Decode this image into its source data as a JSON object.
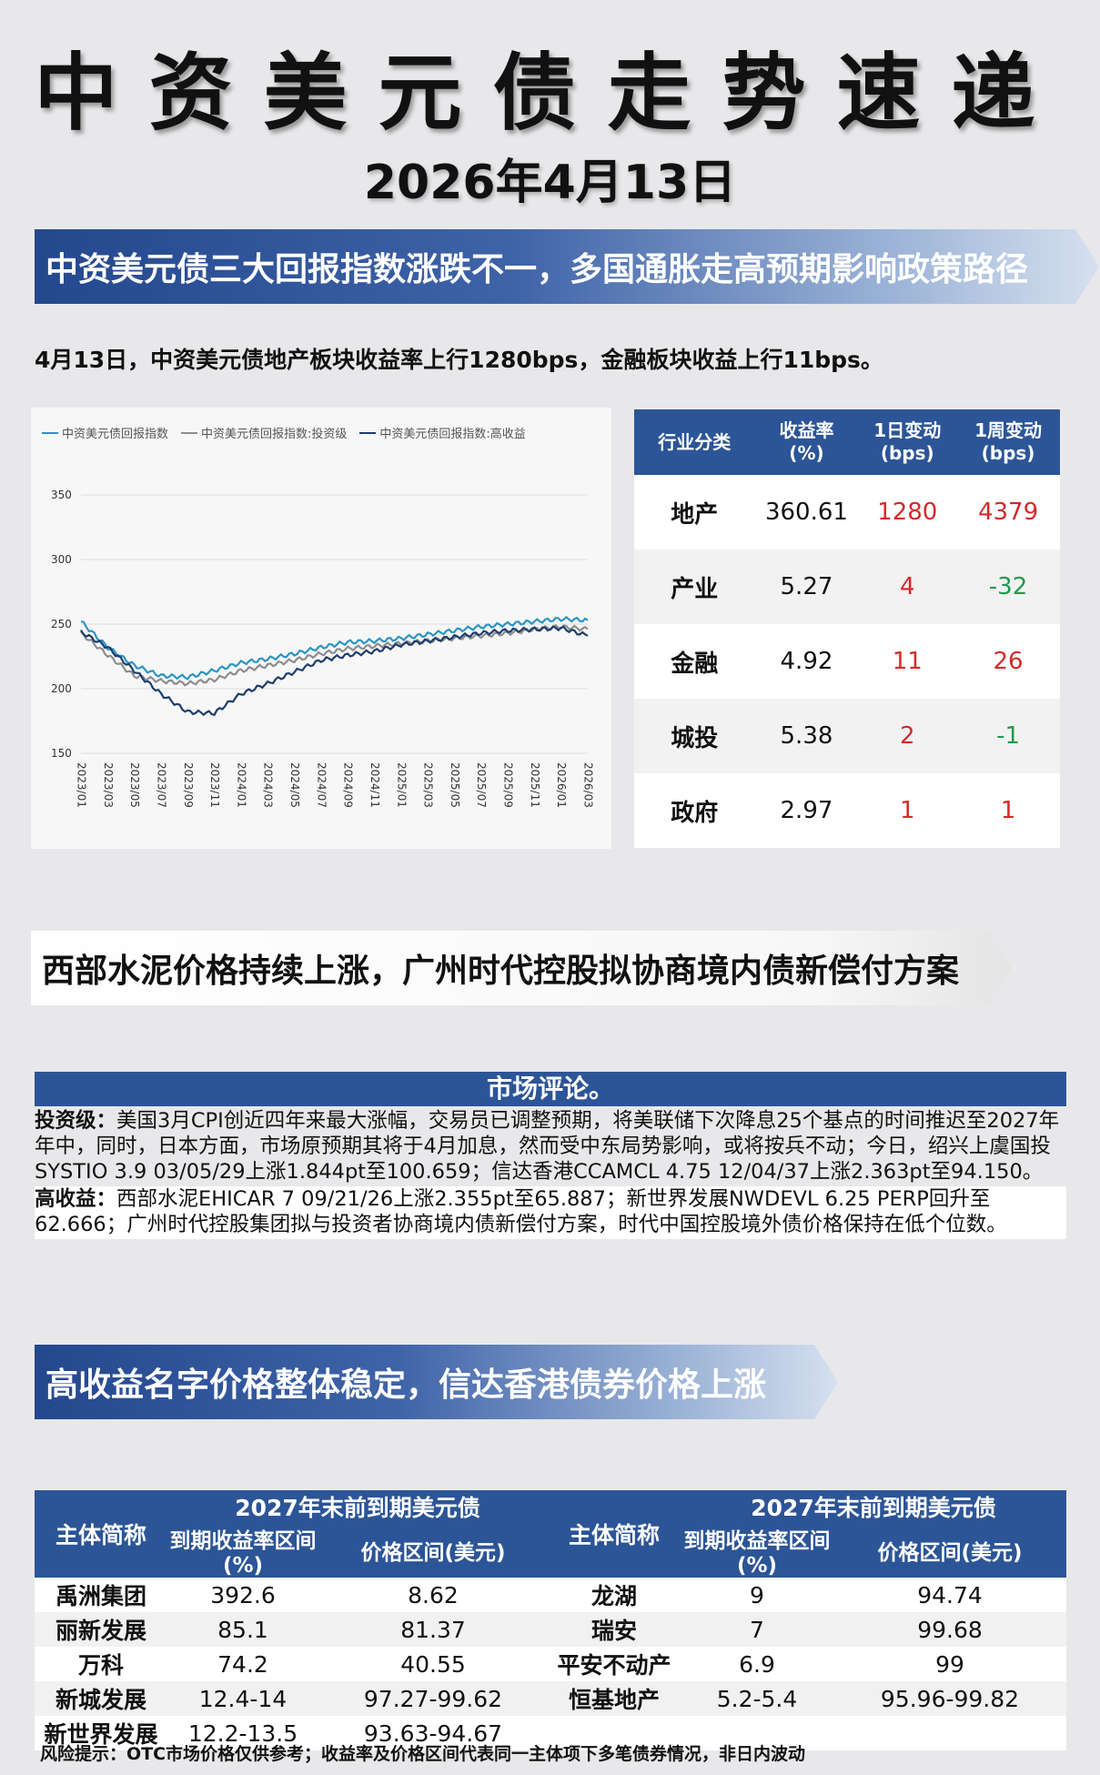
{
  "header": {
    "title": "中资美元债走势速递",
    "date": "2026年4月13日"
  },
  "sections": {
    "s1_title": "中资美元债三大回报指数涨跌不一，多国通胀走高预期影响政策路径",
    "s1_summary": "4月13日，中资美元债地产板块收益率上行1280bps，金融板块收益上行11bps。",
    "s2_title": "西部水泥价格持续上涨，广州时代控股拟协商境内债新偿付方案",
    "s3_title": "高收益名字价格整体稳定，信达香港债券价格上涨"
  },
  "chart_data": {
    "type": "line",
    "legend": [
      "中资美元债回报指数",
      "中资美元债回报指数:投资级",
      "中资美元债回报指数:高收益"
    ],
    "colors": [
      "#2b95c4",
      "#8d8d8d",
      "#1f3d6e"
    ],
    "ylim": [
      150,
      350
    ],
    "yticks": [
      "350",
      "300",
      "250",
      "200",
      "150"
    ],
    "xticks": [
      "2023/01",
      "2023/03",
      "2023/05",
      "2023/07",
      "2023/09",
      "2023/11",
      "2024/01",
      "2024/03",
      "2024/05",
      "2024/07",
      "2024/09",
      "2024/11",
      "2025/01",
      "2025/03",
      "2025/05",
      "2025/07",
      "2025/09",
      "2025/11",
      "2026/01",
      "2026/03"
    ],
    "series": [
      {
        "name": "中资美元债回报指数",
        "values": [
          252,
          232,
          218,
          210,
          209,
          214,
          220,
          223,
          227,
          232,
          236,
          237,
          239,
          242,
          245,
          248,
          250,
          252,
          254,
          253
        ]
      },
      {
        "name": "中资美元债回报指数:投资级",
        "values": [
          243,
          226,
          210,
          206,
          204,
          207,
          214,
          218,
          222,
          227,
          231,
          233,
          235,
          237,
          239,
          241,
          243,
          246,
          248,
          246
        ]
      },
      {
        "name": "中资美元债回报指数:高收益",
        "values": [
          244,
          232,
          214,
          196,
          182,
          181,
          196,
          204,
          213,
          222,
          226,
          229,
          234,
          237,
          240,
          243,
          245,
          246,
          247,
          241
        ]
      }
    ]
  },
  "sector_table": {
    "headers": [
      "行业分类",
      "收益率\n(%)",
      "1日变动\n(bps)",
      "1周变动\n(bps)"
    ],
    "rows": [
      {
        "sector": "地产",
        "yield": "360.61",
        "d1": "1280",
        "w1": "4379",
        "d1c": "red",
        "w1c": "red"
      },
      {
        "sector": "产业",
        "yield": "5.27",
        "d1": "4",
        "w1": "-32",
        "d1c": "red",
        "w1c": "green"
      },
      {
        "sector": "金融",
        "yield": "4.92",
        "d1": "11",
        "w1": "26",
        "d1c": "red",
        "w1c": "red"
      },
      {
        "sector": "城投",
        "yield": "5.38",
        "d1": "2",
        "w1": "-1",
        "d1c": "red",
        "w1c": "green"
      },
      {
        "sector": "政府",
        "yield": "2.97",
        "d1": "1",
        "w1": "1",
        "d1c": "red",
        "w1c": "red"
      }
    ]
  },
  "market_comment": {
    "title": "市场评论。",
    "ig_label": "投资级：",
    "ig_text": "美国3月CPI创近四年来最大涨幅，交易员已调整预期，将美联储下次降息25个基点的时间推迟至2027年年中，同时，日本方面，市场原预期其将于4月加息，然而受中东局势影响，或将按兵不动；今日，绍兴上虞国投SYSTIO 3.9 03/05/29上涨1.844pt至100.659；信达香港CCAMCL 4.75 12/04/37上涨2.363pt至94.150。",
    "hy_label": "高收益：",
    "hy_text": "西部水泥EHICAR 7 09/21/26上涨2.355pt至65.887；新世界发展NWDEVL 6.25 PERP回升至62.666；广州时代控股集团拟与投资者协商境内债新偿付方案，时代中国控股境外债价格保持在低个位数。"
  },
  "bond_table": {
    "name_header": "主体简称",
    "group_header": "2027年末前到期美元债",
    "yield_header": "到期收益率区间(%)",
    "price_header": "价格区间(美元)",
    "left": [
      {
        "name": "禹洲集团",
        "yield": "392.6",
        "price": "8.62"
      },
      {
        "name": "丽新发展",
        "yield": "85.1",
        "price": "81.37"
      },
      {
        "name": "万科",
        "yield": "74.2",
        "price": "40.55"
      },
      {
        "name": "新城发展",
        "yield": "12.4-14",
        "price": "97.27-99.62"
      },
      {
        "name": "新世界发展",
        "yield": "12.2-13.5",
        "price": "93.63-94.67"
      }
    ],
    "right": [
      {
        "name": "龙湖",
        "yield": "9",
        "price": "94.74"
      },
      {
        "name": "瑞安",
        "yield": "7",
        "price": "99.68"
      },
      {
        "name": "平安不动产",
        "yield": "6.9",
        "price": "99"
      },
      {
        "name": "恒基地产",
        "yield": "5.2-5.4",
        "price": "95.96-99.82"
      },
      {
        "name": "",
        "yield": "",
        "price": ""
      }
    ]
  },
  "footer": {
    "risk": "风险提示：OTC市场价格仅供参考；收益率及价格区间代表同一主体项下多笔债券情况，非日内波动"
  }
}
